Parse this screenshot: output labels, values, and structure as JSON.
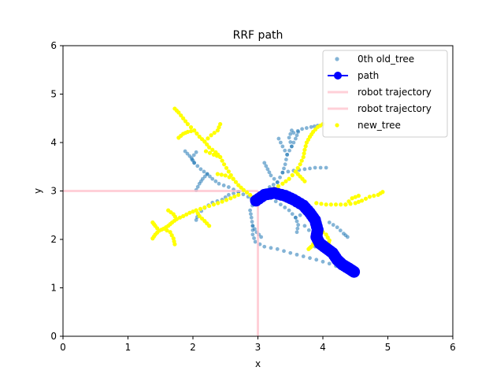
{
  "chart_data": {
    "type": "scatter",
    "title": "RRF path",
    "xlabel": "x",
    "ylabel": "y",
    "xlim": [
      0,
      6
    ],
    "ylim": [
      0,
      6
    ],
    "xticks": [
      0,
      1,
      2,
      3,
      4,
      5,
      6
    ],
    "yticks": [
      0,
      1,
      2,
      3,
      4,
      5,
      6
    ],
    "grid": false,
    "legend_position": "top-right",
    "series": [
      {
        "name": "0th old_tree",
        "kind": "scatter",
        "color": "#1f77b4",
        "branches": [
          [
            [
              2.95,
              2.8
            ],
            [
              2.85,
              2.88
            ],
            [
              2.7,
              2.98
            ],
            [
              2.55,
              3.08
            ],
            [
              2.4,
              3.15
            ],
            [
              2.3,
              3.25
            ],
            [
              2.22,
              3.35
            ],
            [
              2.12,
              3.45
            ],
            [
              2.02,
              3.58
            ],
            [
              1.95,
              3.72
            ],
            [
              1.88,
              3.82
            ]
          ],
          [
            [
              2.22,
              3.35
            ],
            [
              2.15,
              3.25
            ],
            [
              2.1,
              3.15
            ],
            [
              2.05,
              3.02
            ]
          ],
          [
            [
              2.02,
              3.58
            ],
            [
              1.98,
              3.68
            ],
            [
              2.05,
              3.8
            ]
          ],
          [
            [
              2.7,
              2.98
            ],
            [
              2.55,
              2.92
            ],
            [
              2.45,
              2.82
            ],
            [
              2.3,
              2.76
            ],
            [
              2.18,
              2.65
            ],
            [
              2.08,
              2.52
            ],
            [
              2.05,
              2.4
            ]
          ],
          [
            [
              2.95,
              2.8
            ],
            [
              3.05,
              2.95
            ],
            [
              3.18,
              3.08
            ],
            [
              3.3,
              3.18
            ],
            [
              3.38,
              3.38
            ],
            [
              3.42,
              3.55
            ],
            [
              3.45,
              3.75
            ],
            [
              3.52,
              3.92
            ],
            [
              3.58,
              4.08
            ],
            [
              3.62,
              4.22
            ]
          ],
          [
            [
              3.45,
              3.75
            ],
            [
              3.38,
              3.92
            ],
            [
              3.32,
              4.08
            ]
          ],
          [
            [
              3.52,
              3.92
            ],
            [
              3.48,
              4.1
            ],
            [
              3.52,
              4.25
            ]
          ],
          [
            [
              3.38,
              3.38
            ],
            [
              3.55,
              3.42
            ],
            [
              3.72,
              3.45
            ],
            [
              3.88,
              3.48
            ],
            [
              4.05,
              3.48
            ]
          ],
          [
            [
              3.3,
              3.18
            ],
            [
              3.2,
              3.32
            ],
            [
              3.15,
              3.45
            ],
            [
              3.1,
              3.58
            ]
          ],
          [
            [
              2.95,
              2.8
            ],
            [
              2.88,
              2.6
            ],
            [
              2.9,
              2.45
            ],
            [
              2.92,
              2.28
            ],
            [
              2.92,
              2.1
            ],
            [
              2.96,
              1.95
            ],
            [
              3.1,
              1.85
            ],
            [
              3.3,
              1.8
            ],
            [
              3.5,
              1.72
            ],
            [
              3.7,
              1.65
            ],
            [
              3.9,
              1.58
            ],
            [
              4.1,
              1.5
            ],
            [
              4.3,
              1.4
            ],
            [
              4.5,
              1.27
            ]
          ],
          [
            [
              2.92,
              2.28
            ],
            [
              2.98,
              2.15
            ],
            [
              3.05,
              2.05
            ]
          ],
          [
            [
              3.05,
              2.95
            ],
            [
              3.2,
              2.85
            ],
            [
              3.35,
              2.72
            ],
            [
              3.48,
              2.6
            ],
            [
              3.58,
              2.45
            ],
            [
              3.62,
              2.3
            ],
            [
              3.6,
              2.15
            ]
          ],
          [
            [
              3.58,
              2.45
            ],
            [
              3.72,
              2.55
            ],
            [
              3.82,
              2.65
            ]
          ],
          [
            [
              3.72,
              2.28
            ],
            [
              3.85,
              2.1
            ],
            [
              3.9,
              1.95
            ],
            [
              3.88,
              1.85
            ]
          ],
          [
            [
              4.1,
              2.35
            ],
            [
              4.22,
              2.25
            ],
            [
              4.32,
              2.12
            ],
            [
              4.38,
              2.05
            ]
          ],
          [
            [
              3.55,
              4.2
            ],
            [
              3.68,
              4.28
            ],
            [
              3.82,
              4.32
            ],
            [
              3.92,
              4.35
            ]
          ]
        ]
      },
      {
        "name": "path",
        "kind": "line-marker",
        "color": "#0000ff",
        "x": [
          2.97,
          3.1,
          3.25,
          3.42,
          3.55,
          3.7,
          3.8,
          3.88,
          3.92,
          3.9,
          3.95,
          4.05,
          4.15,
          4.22,
          4.3,
          4.4,
          4.48
        ],
        "y": [
          2.8,
          2.92,
          2.96,
          2.9,
          2.82,
          2.7,
          2.55,
          2.4,
          2.2,
          2.05,
          1.92,
          1.82,
          1.72,
          1.58,
          1.48,
          1.4,
          1.33
        ]
      },
      {
        "name": "robot trajectory",
        "kind": "line",
        "color": "#ffc0cb",
        "x": [
          0,
          3
        ],
        "y": [
          3,
          3
        ]
      },
      {
        "name": "robot trajectory",
        "kind": "line",
        "color": "#ffc0cb",
        "x": [
          3,
          3
        ],
        "y": [
          0,
          3
        ]
      },
      {
        "name": "new_tree",
        "kind": "scatter",
        "color": "#ffff00",
        "branches": [
          [
            [
              2.98,
              2.82
            ],
            [
              2.88,
              2.92
            ],
            [
              2.78,
              3.02
            ],
            [
              2.7,
              3.12
            ],
            [
              2.62,
              3.25
            ],
            [
              2.55,
              3.4
            ],
            [
              2.48,
              3.55
            ],
            [
              2.42,
              3.7
            ],
            [
              2.35,
              3.8
            ],
            [
              2.25,
              3.9
            ],
            [
              2.18,
              4.02
            ],
            [
              2.1,
              4.12
            ],
            [
              2.02,
              4.25
            ],
            [
              1.92,
              4.38
            ],
            [
              1.85,
              4.5
            ],
            [
              1.78,
              4.62
            ],
            [
              1.72,
              4.7
            ]
          ],
          [
            [
              2.02,
              4.25
            ],
            [
              1.92,
              4.22
            ],
            [
              1.85,
              4.18
            ],
            [
              1.78,
              4.1
            ]
          ],
          [
            [
              2.18,
              4.02
            ],
            [
              2.28,
              4.15
            ],
            [
              2.38,
              4.25
            ],
            [
              2.42,
              4.38
            ]
          ],
          [
            [
              2.42,
              3.7
            ],
            [
              2.32,
              3.75
            ],
            [
              2.2,
              3.82
            ]
          ],
          [
            [
              2.62,
              3.25
            ],
            [
              2.5,
              3.32
            ],
            [
              2.38,
              3.35
            ]
          ],
          [
            [
              2.7,
              2.92
            ],
            [
              2.58,
              2.85
            ],
            [
              2.45,
              2.78
            ],
            [
              2.32,
              2.72
            ],
            [
              2.18,
              2.66
            ],
            [
              2.05,
              2.6
            ],
            [
              1.95,
              2.55
            ],
            [
              1.85,
              2.48
            ],
            [
              1.75,
              2.42
            ],
            [
              1.68,
              2.35
            ],
            [
              1.62,
              2.28
            ],
            [
              1.55,
              2.22
            ],
            [
              1.48,
              2.18
            ],
            [
              1.42,
              2.1
            ],
            [
              1.38,
              2.02
            ]
          ],
          [
            [
              1.75,
              2.42
            ],
            [
              1.7,
              2.52
            ],
            [
              1.62,
              2.6
            ]
          ],
          [
            [
              1.55,
              2.22
            ],
            [
              1.65,
              2.15
            ],
            [
              1.7,
              2.02
            ],
            [
              1.72,
              1.9
            ]
          ],
          [
            [
              2.05,
              2.6
            ],
            [
              2.1,
              2.48
            ],
            [
              2.18,
              2.38
            ],
            [
              2.25,
              2.28
            ]
          ],
          [
            [
              1.48,
              2.18
            ],
            [
              1.42,
              2.28
            ],
            [
              1.38,
              2.35
            ]
          ],
          [
            [
              3.1,
              2.95
            ],
            [
              3.25,
              3.05
            ],
            [
              3.38,
              3.15
            ],
            [
              3.48,
              3.25
            ],
            [
              3.58,
              3.4
            ],
            [
              3.65,
              3.55
            ],
            [
              3.7,
              3.7
            ],
            [
              3.72,
              3.85
            ],
            [
              3.75,
              4.0
            ],
            [
              3.8,
              4.12
            ],
            [
              3.85,
              4.22
            ],
            [
              3.92,
              4.32
            ],
            [
              4.0,
              4.38
            ]
          ],
          [
            [
              3.58,
              3.4
            ],
            [
              3.65,
              3.3
            ],
            [
              3.72,
              3.2
            ]
          ],
          [
            [
              3.9,
              2.75
            ],
            [
              4.05,
              2.72
            ],
            [
              4.2,
              2.72
            ],
            [
              4.35,
              2.72
            ],
            [
              4.5,
              2.75
            ],
            [
              4.6,
              2.8
            ],
            [
              4.72,
              2.88
            ],
            [
              4.85,
              2.92
            ],
            [
              4.92,
              2.98
            ]
          ],
          [
            [
              4.35,
              2.72
            ],
            [
              4.45,
              2.85
            ],
            [
              4.55,
              2.9
            ]
          ],
          [
            [
              3.95,
              2.2
            ],
            [
              4.05,
              2.1
            ],
            [
              4.1,
              1.98
            ],
            [
              4.08,
              1.88
            ]
          ],
          [
            [
              3.88,
              1.95
            ],
            [
              3.82,
              1.85
            ],
            [
              3.78,
              1.8
            ]
          ]
        ]
      }
    ]
  }
}
